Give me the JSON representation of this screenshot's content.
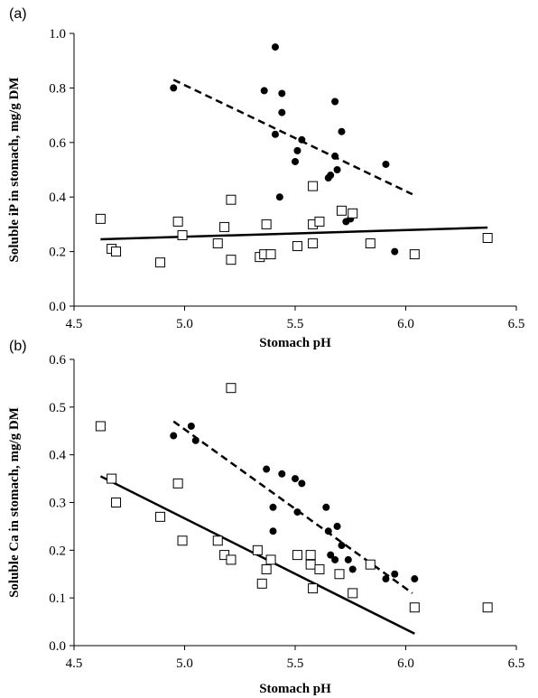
{
  "chart_data": [
    {
      "type": "scatter",
      "panel_label": "(a)",
      "xlabel": "Stomach pH",
      "ylabel": "Soluble iP in stomach, mg/g DM",
      "xlim": [
        4.5,
        6.5
      ],
      "ylim": [
        0.0,
        1.0
      ],
      "x_ticks": [
        "4.5",
        "5.0",
        "5.5",
        "6.0",
        "6.5"
      ],
      "y_ticks": [
        "0.0",
        "0.2",
        "0.4",
        "0.6",
        "0.8",
        "1.0"
      ],
      "grid": false,
      "series": [
        {
          "marker": "filled-circle",
          "points": [
            [
              4.95,
              0.8
            ],
            [
              5.36,
              0.79
            ],
            [
              5.41,
              0.95
            ],
            [
              5.44,
              0.78
            ],
            [
              5.44,
              0.71
            ],
            [
              5.41,
              0.63
            ],
            [
              5.53,
              0.61
            ],
            [
              5.51,
              0.57
            ],
            [
              5.5,
              0.53
            ],
            [
              5.68,
              0.75
            ],
            [
              5.71,
              0.64
            ],
            [
              5.68,
              0.55
            ],
            [
              5.69,
              0.5
            ],
            [
              5.66,
              0.48
            ],
            [
              5.65,
              0.47
            ],
            [
              5.43,
              0.4
            ],
            [
              5.91,
              0.52
            ],
            [
              5.75,
              0.32
            ],
            [
              5.73,
              0.31
            ],
            [
              5.95,
              0.2
            ]
          ],
          "trendline": {
            "style": "dashed",
            "x": [
              4.95,
              6.03
            ],
            "y": [
              0.83,
              0.41
            ]
          }
        },
        {
          "marker": "open-square",
          "points": [
            [
              4.62,
              0.32
            ],
            [
              4.67,
              0.21
            ],
            [
              4.69,
              0.2
            ],
            [
              4.89,
              0.16
            ],
            [
              4.97,
              0.31
            ],
            [
              4.99,
              0.26
            ],
            [
              5.15,
              0.23
            ],
            [
              5.18,
              0.29
            ],
            [
              5.21,
              0.39
            ],
            [
              5.21,
              0.17
            ],
            [
              5.34,
              0.18
            ],
            [
              5.36,
              0.19
            ],
            [
              5.37,
              0.3
            ],
            [
              5.39,
              0.19
            ],
            [
              5.51,
              0.22
            ],
            [
              5.58,
              0.44
            ],
            [
              5.58,
              0.3
            ],
            [
              5.58,
              0.23
            ],
            [
              5.61,
              0.31
            ],
            [
              5.71,
              0.35
            ],
            [
              5.76,
              0.34
            ],
            [
              5.84,
              0.23
            ],
            [
              6.04,
              0.19
            ],
            [
              6.37,
              0.25
            ]
          ],
          "trendline": {
            "style": "solid",
            "x": [
              4.62,
              6.37
            ],
            "y": [
              0.245,
              0.288
            ]
          }
        }
      ]
    },
    {
      "type": "scatter",
      "panel_label": "(b)",
      "xlabel": "Stomach pH",
      "ylabel": "Soluble Ca in stomach, mg/g DM",
      "xlim": [
        4.5,
        6.5
      ],
      "ylim": [
        0.0,
        0.6
      ],
      "x_ticks": [
        "4.5",
        "5.0",
        "5.5",
        "6.0",
        "6.5"
      ],
      "y_ticks": [
        "0.0",
        "0.1",
        "0.2",
        "0.3",
        "0.4",
        "0.5",
        "0.6"
      ],
      "grid": false,
      "series": [
        {
          "marker": "filled-circle",
          "points": [
            [
              4.95,
              0.44
            ],
            [
              5.03,
              0.46
            ],
            [
              5.05,
              0.43
            ],
            [
              5.37,
              0.37
            ],
            [
              5.44,
              0.36
            ],
            [
              5.5,
              0.35
            ],
            [
              5.53,
              0.34
            ],
            [
              5.4,
              0.29
            ],
            [
              5.51,
              0.28
            ],
            [
              5.4,
              0.24
            ],
            [
              5.64,
              0.29
            ],
            [
              5.65,
              0.24
            ],
            [
              5.69,
              0.25
            ],
            [
              5.66,
              0.19
            ],
            [
              5.68,
              0.18
            ],
            [
              5.71,
              0.21
            ],
            [
              5.74,
              0.18
            ],
            [
              5.76,
              0.16
            ],
            [
              5.91,
              0.14
            ],
            [
              5.95,
              0.15
            ],
            [
              6.04,
              0.14
            ]
          ],
          "trendline": {
            "style": "dashed",
            "x": [
              4.95,
              6.03
            ],
            "y": [
              0.47,
              0.11
            ]
          }
        },
        {
          "marker": "open-square",
          "points": [
            [
              4.62,
              0.46
            ],
            [
              4.67,
              0.35
            ],
            [
              4.69,
              0.3
            ],
            [
              4.89,
              0.27
            ],
            [
              4.97,
              0.34
            ],
            [
              4.99,
              0.22
            ],
            [
              5.15,
              0.22
            ],
            [
              5.18,
              0.19
            ],
            [
              5.21,
              0.18
            ],
            [
              5.21,
              0.54
            ],
            [
              5.33,
              0.2
            ],
            [
              5.35,
              0.13
            ],
            [
              5.37,
              0.16
            ],
            [
              5.39,
              0.18
            ],
            [
              5.51,
              0.19
            ],
            [
              5.57,
              0.19
            ],
            [
              5.57,
              0.17
            ],
            [
              5.58,
              0.12
            ],
            [
              5.61,
              0.16
            ],
            [
              5.7,
              0.15
            ],
            [
              5.76,
              0.11
            ],
            [
              5.84,
              0.17
            ],
            [
              6.04,
              0.08
            ],
            [
              6.37,
              0.08
            ]
          ],
          "trendline": {
            "style": "solid",
            "x": [
              4.62,
              6.04
            ],
            "y": [
              0.355,
              0.025
            ]
          }
        }
      ]
    }
  ]
}
